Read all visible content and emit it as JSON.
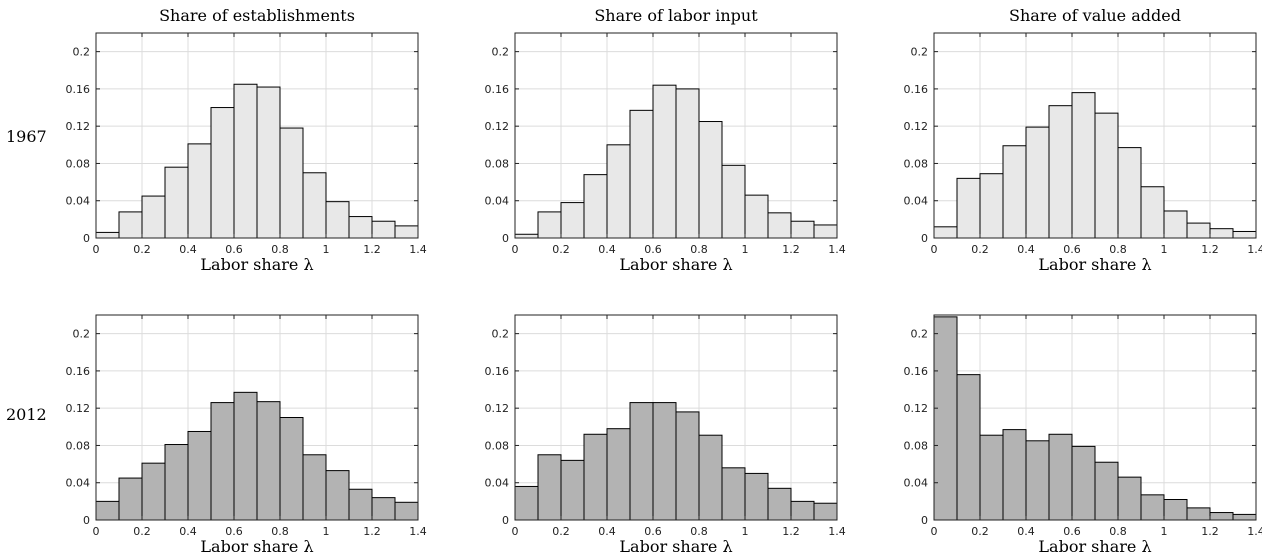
{
  "figure": {
    "column_titles": [
      "Share of establishments",
      "Share of labor input",
      "Share of value added"
    ],
    "row_labels": [
      "1967",
      "2012"
    ],
    "fill_colors": [
      "#e8e8e8",
      "#b3b3b3"
    ],
    "grid_color": "#dcdcdc"
  },
  "chart_data": [
    {
      "type": "bar",
      "panel": "1967 / Share of establishments",
      "bin_edges": [
        0,
        0.1,
        0.2,
        0.3,
        0.4,
        0.5,
        0.6,
        0.7,
        0.8,
        0.9,
        1.0,
        1.1,
        1.2,
        1.3,
        1.4
      ],
      "values": [
        0.006,
        0.028,
        0.045,
        0.076,
        0.101,
        0.14,
        0.165,
        0.162,
        0.118,
        0.07,
        0.039,
        0.023,
        0.018,
        0.013
      ],
      "xlabel": "Labor share λ",
      "xlim": [
        0,
        1.4
      ],
      "ylim": [
        0,
        0.22
      ],
      "xticks": [
        "0",
        "0.2",
        "0.4",
        "0.6",
        "0.8",
        "1",
        "1.2",
        "1.4"
      ],
      "yticks": [
        "0",
        "0.04",
        "0.08",
        "0.12",
        "0.16",
        "0.2"
      ],
      "grid": true
    },
    {
      "type": "bar",
      "panel": "1967 / Share of labor input",
      "bin_edges": [
        0,
        0.1,
        0.2,
        0.3,
        0.4,
        0.5,
        0.6,
        0.7,
        0.8,
        0.9,
        1.0,
        1.1,
        1.2,
        1.3,
        1.4
      ],
      "values": [
        0.004,
        0.028,
        0.038,
        0.068,
        0.1,
        0.137,
        0.164,
        0.16,
        0.125,
        0.078,
        0.046,
        0.027,
        0.018,
        0.014
      ],
      "xlabel": "Labor share λ",
      "xlim": [
        0,
        1.4
      ],
      "ylim": [
        0,
        0.22
      ],
      "xticks": [
        "0",
        "0.2",
        "0.4",
        "0.6",
        "0.8",
        "1",
        "1.2",
        "1.4"
      ],
      "yticks": [
        "0",
        "0.04",
        "0.08",
        "0.12",
        "0.16",
        "0.2"
      ],
      "grid": true
    },
    {
      "type": "bar",
      "panel": "1967 / Share of value added",
      "bin_edges": [
        0,
        0.1,
        0.2,
        0.3,
        0.4,
        0.5,
        0.6,
        0.7,
        0.8,
        0.9,
        1.0,
        1.1,
        1.2,
        1.3,
        1.4
      ],
      "values": [
        0.012,
        0.064,
        0.069,
        0.099,
        0.119,
        0.142,
        0.156,
        0.134,
        0.097,
        0.055,
        0.029,
        0.016,
        0.01,
        0.007
      ],
      "xlabel": "Labor share λ",
      "xlim": [
        0,
        1.4
      ],
      "ylim": [
        0,
        0.22
      ],
      "xticks": [
        "0",
        "0.2",
        "0.4",
        "0.6",
        "0.8",
        "1",
        "1.2",
        "1.4"
      ],
      "yticks": [
        "0",
        "0.04",
        "0.08",
        "0.12",
        "0.16",
        "0.2"
      ],
      "grid": true
    },
    {
      "type": "bar",
      "panel": "2012 / Share of establishments",
      "bin_edges": [
        0,
        0.1,
        0.2,
        0.3,
        0.4,
        0.5,
        0.6,
        0.7,
        0.8,
        0.9,
        1.0,
        1.1,
        1.2,
        1.3,
        1.4
      ],
      "values": [
        0.02,
        0.045,
        0.061,
        0.081,
        0.095,
        0.126,
        0.137,
        0.127,
        0.11,
        0.07,
        0.053,
        0.033,
        0.024,
        0.019
      ],
      "xlabel": "Labor share λ",
      "xlim": [
        0,
        1.4
      ],
      "ylim": [
        0,
        0.22
      ],
      "xticks": [
        "0",
        "0.2",
        "0.4",
        "0.6",
        "0.8",
        "1",
        "1.2",
        "1.4"
      ],
      "yticks": [
        "0",
        "0.04",
        "0.08",
        "0.12",
        "0.16",
        "0.2"
      ],
      "grid": true
    },
    {
      "type": "bar",
      "panel": "2012 / Share of labor input",
      "bin_edges": [
        0,
        0.1,
        0.2,
        0.3,
        0.4,
        0.5,
        0.6,
        0.7,
        0.8,
        0.9,
        1.0,
        1.1,
        1.2,
        1.3,
        1.4
      ],
      "values": [
        0.036,
        0.07,
        0.064,
        0.092,
        0.098,
        0.126,
        0.126,
        0.116,
        0.091,
        0.056,
        0.05,
        0.034,
        0.02,
        0.018
      ],
      "xlabel": "Labor share λ",
      "xlim": [
        0,
        1.4
      ],
      "ylim": [
        0,
        0.22
      ],
      "xticks": [
        "0",
        "0.2",
        "0.4",
        "0.6",
        "0.8",
        "1",
        "1.2",
        "1.4"
      ],
      "yticks": [
        "0",
        "0.04",
        "0.08",
        "0.12",
        "0.16",
        "0.2"
      ],
      "grid": true
    },
    {
      "type": "bar",
      "panel": "2012 / Share of value added",
      "bin_edges": [
        0,
        0.1,
        0.2,
        0.3,
        0.4,
        0.5,
        0.6,
        0.7,
        0.8,
        0.9,
        1.0,
        1.1,
        1.2,
        1.3,
        1.4
      ],
      "values": [
        0.218,
        0.156,
        0.091,
        0.097,
        0.085,
        0.092,
        0.079,
        0.062,
        0.046,
        0.027,
        0.022,
        0.013,
        0.008,
        0.006
      ],
      "xlabel": "Labor share λ",
      "xlim": [
        0,
        1.4
      ],
      "ylim": [
        0,
        0.22
      ],
      "xticks": [
        "0",
        "0.2",
        "0.4",
        "0.6",
        "0.8",
        "1",
        "1.2",
        "1.4"
      ],
      "yticks": [
        "0",
        "0.04",
        "0.08",
        "0.12",
        "0.16",
        "0.2"
      ],
      "grid": true
    }
  ]
}
